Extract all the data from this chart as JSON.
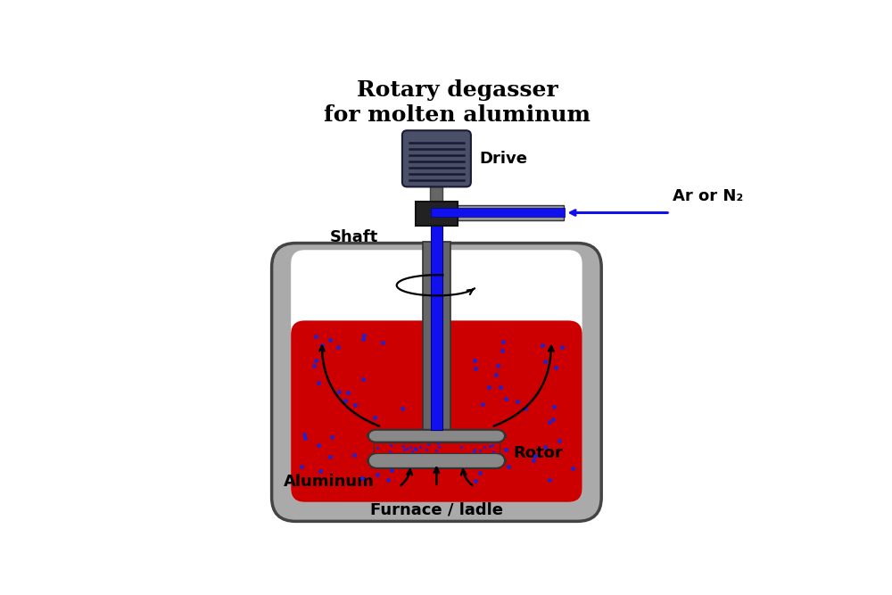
{
  "title": "Rotary degasser\nfor molten aluminum",
  "title_fontsize": 18,
  "bg_color": "#ffffff",
  "furnace_outer_color": "#aaaaaa",
  "furnace_inner_color": "#ffffff",
  "aluminum_color": "#cc0000",
  "shaft_gray_color": "#666666",
  "shaft_blue_color": "#1111ee",
  "drive_color": "#4a5068",
  "drive_stem_color": "#888888",
  "coupling_color": "#222222",
  "rotor_color": "#888888",
  "bubble_color": "#2222cc",
  "arrow_color": "#000000",
  "gas_arrow_color": "#1111ee",
  "label_fontsize": 12,
  "labels": {
    "drive": "Drive",
    "shaft": "Shaft",
    "ar_n2": "Ar or N₂",
    "rotor": "Rotor",
    "aluminum": "Aluminum",
    "furnace": "Furnace / ladle"
  }
}
